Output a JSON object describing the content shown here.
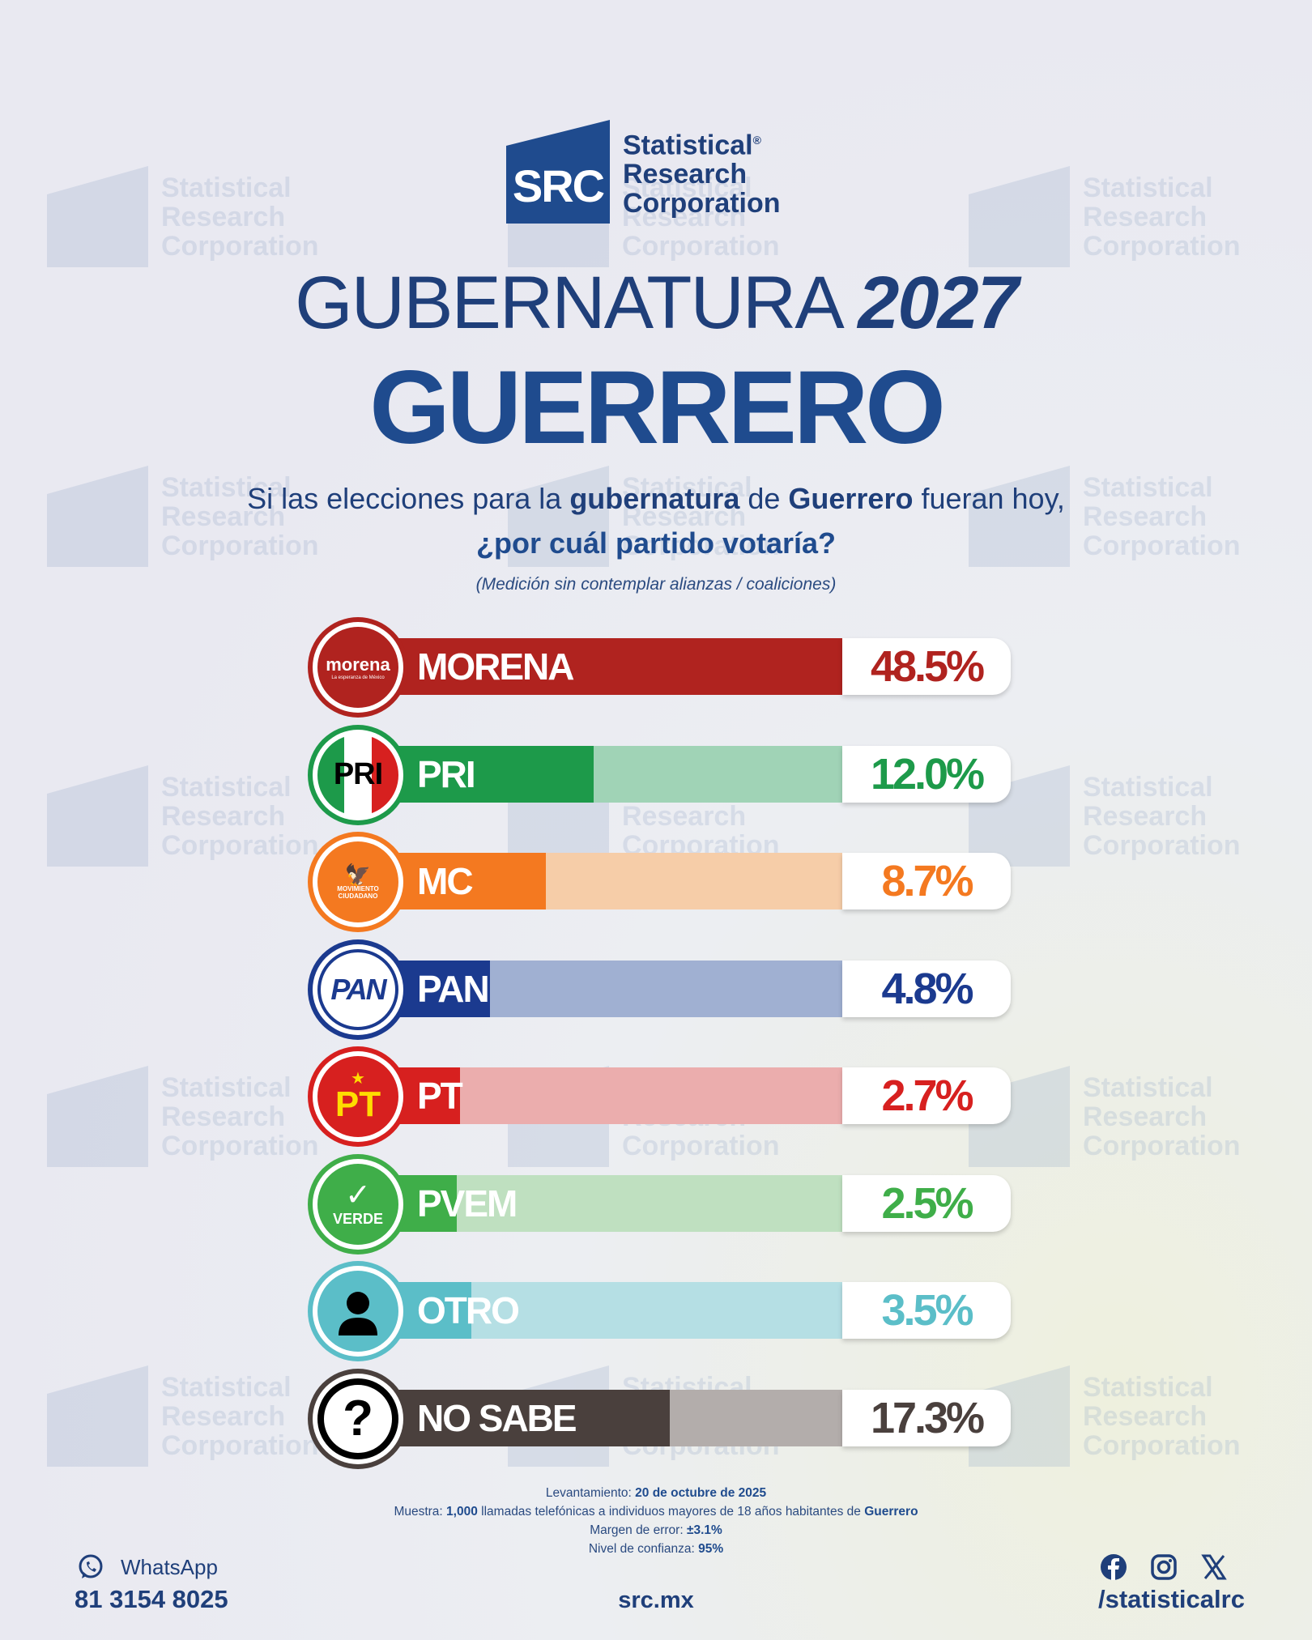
{
  "brand": {
    "mark": "SRC",
    "line1": "Statistical",
    "line2": "Research",
    "line3": "Corporation",
    "reg": "®"
  },
  "title": {
    "line1_light": "GUBERNATURA",
    "line1_year": "2027",
    "line2": "GUERRERO"
  },
  "question": {
    "part1": "Si las elecciones para la ",
    "bold1": "gubernatura",
    "part2": " de ",
    "bold2": "Guerrero",
    "part3": " fueran hoy,",
    "line2": "¿por cuál partido votaría?"
  },
  "note": "(Medición sin contemplar alianzas / coaliciones)",
  "chart_data": {
    "type": "bar",
    "categories": [
      "MORENA",
      "PRI",
      "MC",
      "PAN",
      "PT",
      "PVEM",
      "OTRO",
      "NO SABE"
    ],
    "values": [
      48.5,
      12.0,
      8.7,
      4.8,
      2.7,
      2.5,
      3.5,
      17.3
    ],
    "labels": [
      "48.5%",
      "12.0%",
      "8.7%",
      "4.8%",
      "2.7%",
      "2.5%",
      "3.5%",
      "17.3%"
    ],
    "unit": "%",
    "orientation": "horizontal",
    "colors": [
      "#b0231f",
      "#1d9a4a",
      "#f47920",
      "#1b3a8f",
      "#d7201f",
      "#3fae49",
      "#5bbec8",
      "#4a403d"
    ],
    "track_colors": [
      "#d9a3a1",
      "#a0d3b6",
      "#f6cda8",
      "#a0b0d2",
      "#ebadad",
      "#bfe0c0",
      "#b5dfe4",
      "#b3adab"
    ],
    "xlim": [
      0,
      50
    ]
  },
  "party_logos": {
    "morena": {
      "main": "morena",
      "sub": "La esperanza de México"
    },
    "pri": "PRI",
    "mc_top": "MOVIMIENTO",
    "mc_bottom": "CIUDADANO",
    "pan": "PAN",
    "pt": "PT",
    "verde": "VERDE",
    "otro": "person-icon",
    "nosabe": "?"
  },
  "methodology": {
    "l1_label": "Levantamiento: ",
    "l1_value": "20 de octubre de 2025",
    "l2_label": "Muestra: ",
    "l2_value": "1,000",
    "l2_text": " llamadas telefónicas a individuos mayores de 18 años habitantes de ",
    "l2_place": "Guerrero",
    "l3_label": "Margen de error: ",
    "l3_value": "±3.1%",
    "l4_label": "Nivel de confianza: ",
    "l4_value": "95%"
  },
  "footer": {
    "whatsapp_label": "WhatsApp",
    "phone": "81 3154 8025",
    "site": "src.mx",
    "handle": "/statisticalrc"
  }
}
